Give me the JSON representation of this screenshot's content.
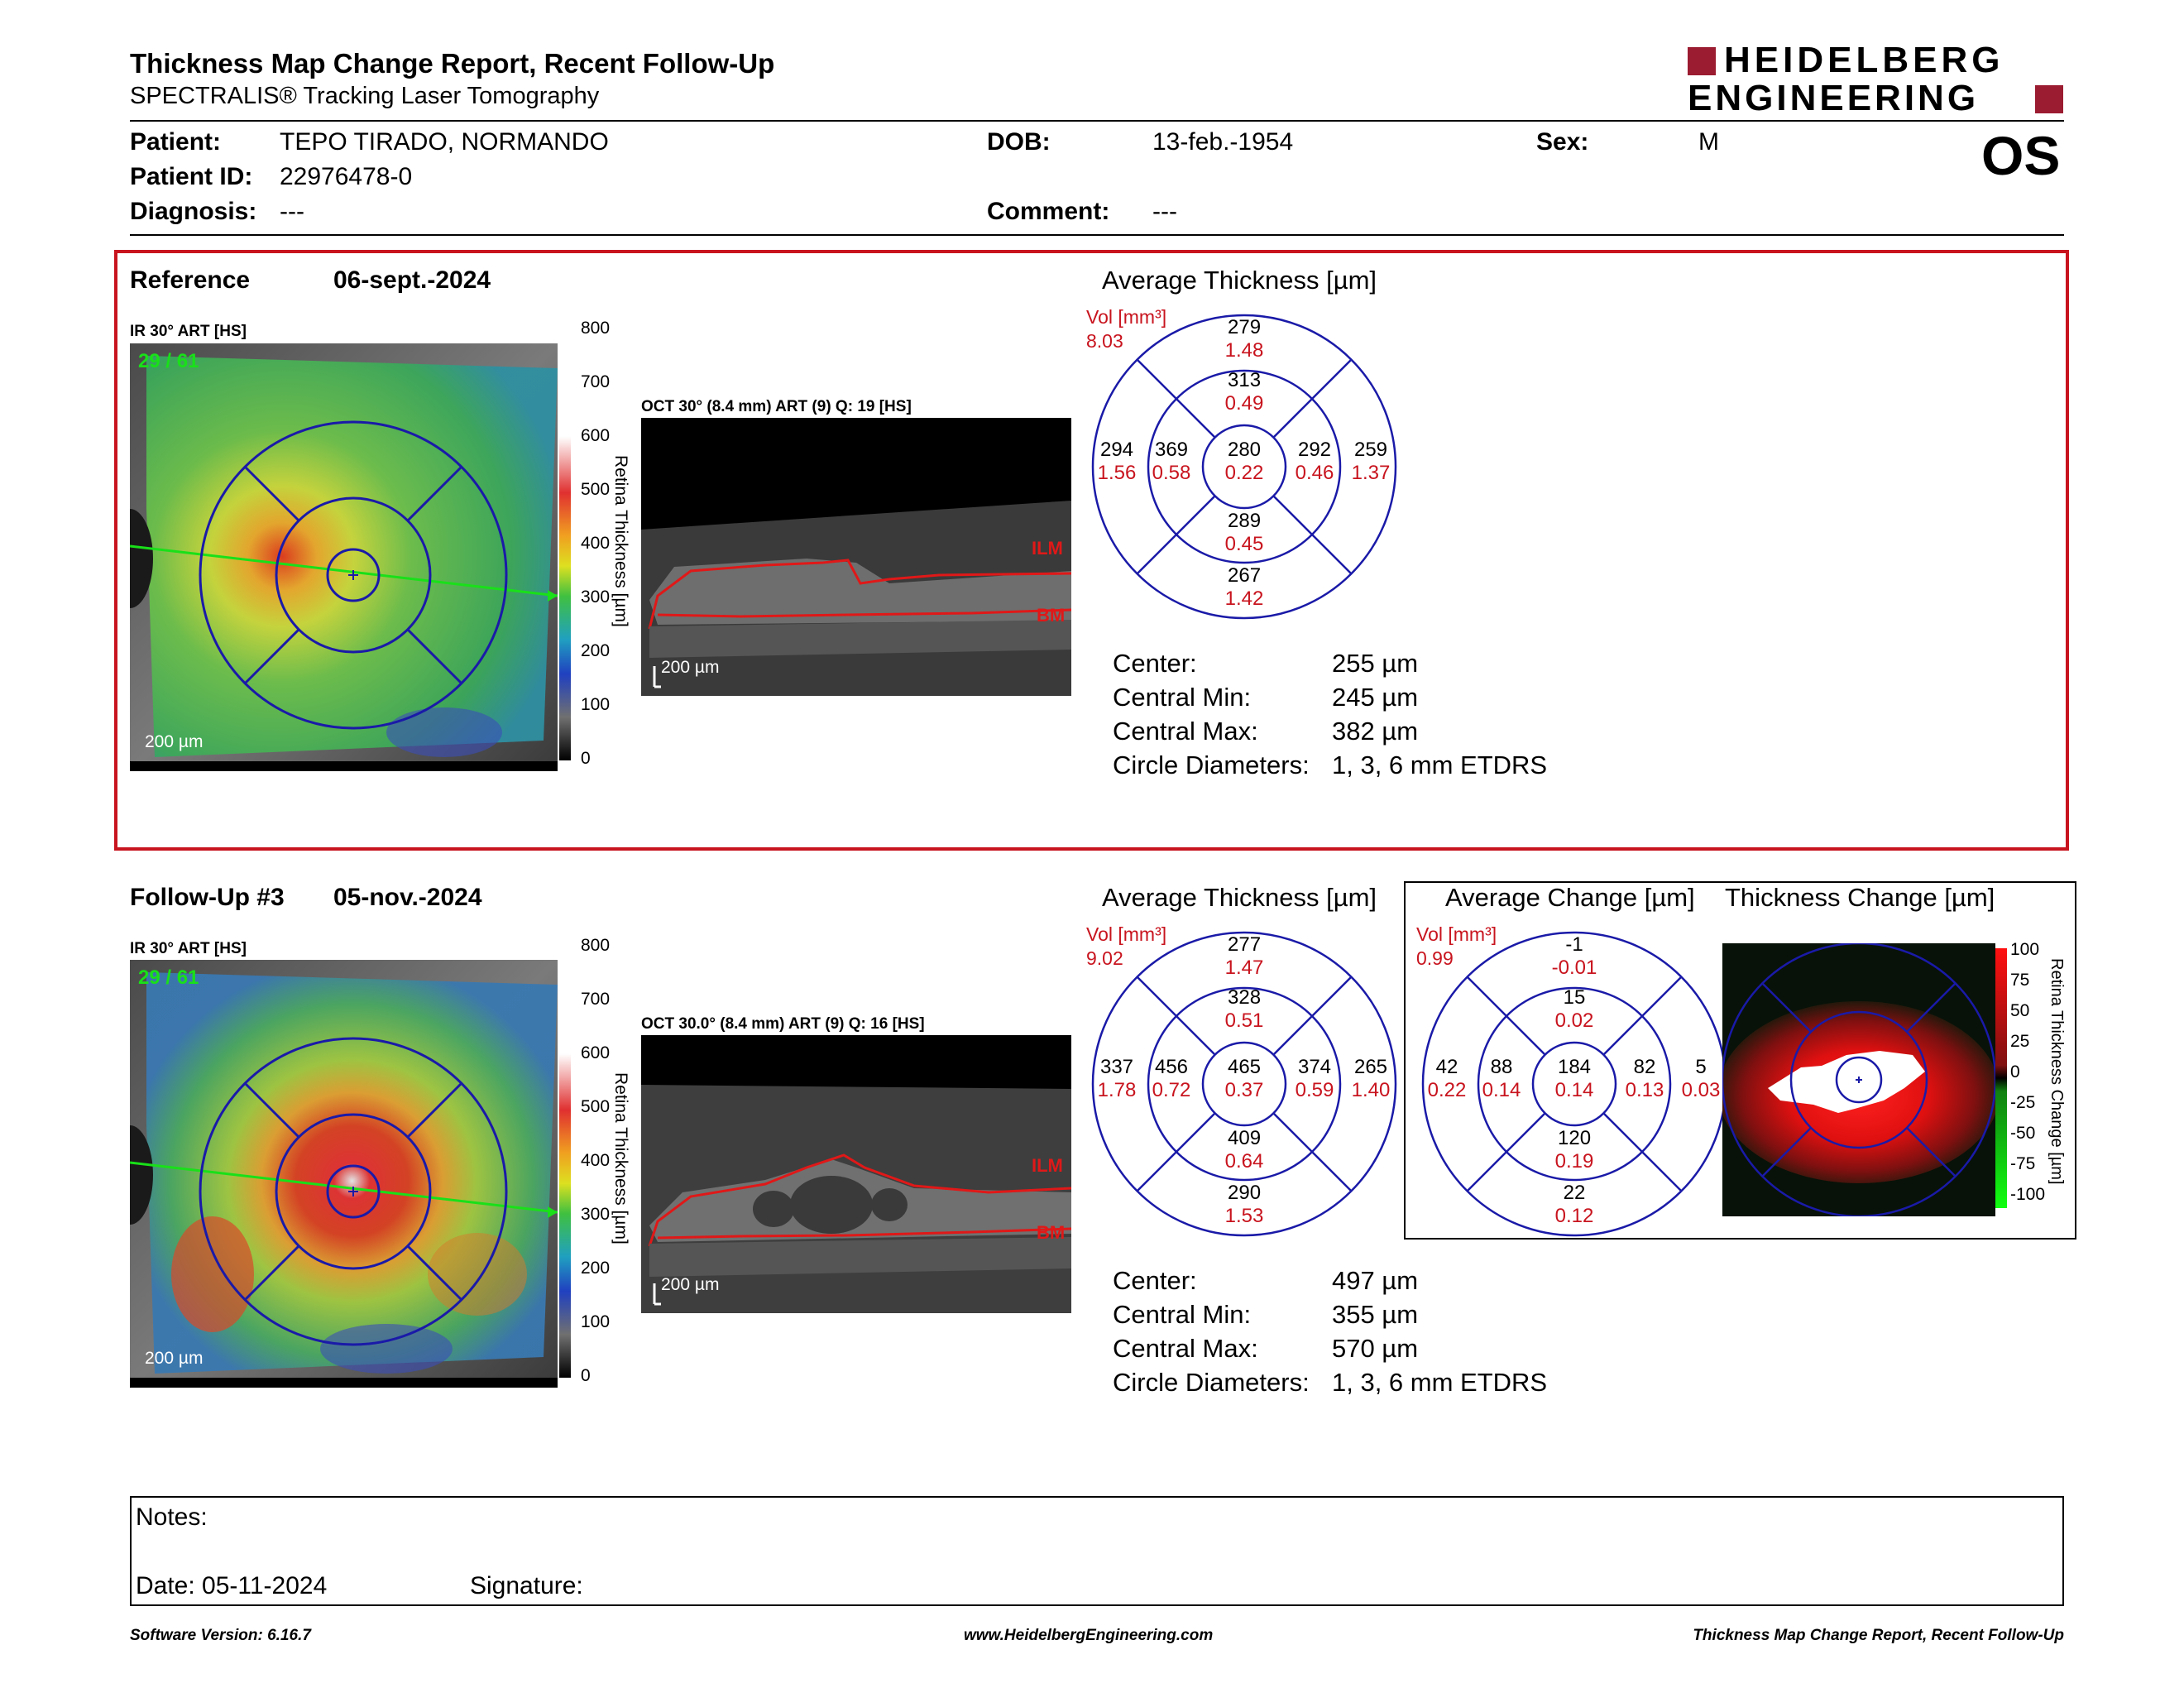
{
  "header": {
    "title": "Thickness Map Change Report, Recent Follow-Up",
    "subtitle": "SPECTRALIS® Tracking Laser Tomography",
    "logo_line1": "HEIDELBERG",
    "logo_line2": "ENGINEERING",
    "eye": "OS"
  },
  "patient": {
    "name_label": "Patient:",
    "name": "TEPO TIRADO, NORMANDO",
    "id_label": "Patient ID:",
    "id": "22976478-0",
    "diagnosis_label": "Diagnosis:",
    "diagnosis": "---",
    "dob_label": "DOB:",
    "dob": "13-feb.-1954",
    "comment_label": "Comment:",
    "comment": "---",
    "sex_label": "Sex:",
    "sex": "M"
  },
  "reference": {
    "label": "Reference",
    "date": "06-sept.-2024",
    "ir_label": "IR 30° ART [HS]",
    "ir_overlay_text": "29 / 61",
    "ir_scalebar": "200 µm",
    "colorbar_ticks": [
      "800",
      "700",
      "600",
      "500",
      "400",
      "300",
      "200",
      "100",
      "0"
    ],
    "colorbar_title": "Retina Thickness [µm]",
    "oct_label": "OCT 30° (8.4 mm) ART (9) Q: 19 [HS]",
    "oct_scalebar": "200 µm",
    "oct_ilm": "ILM",
    "oct_bm": "BM",
    "chart_title": "Average Thickness [µm]",
    "vol_label": "Vol [mm³]",
    "vol_value": "8.03",
    "sectors": {
      "outer_top": {
        "t": "279",
        "v": "1.48"
      },
      "inner_top": {
        "t": "313",
        "v": "0.49"
      },
      "outer_left": {
        "t": "294",
        "v": "1.56"
      },
      "inner_left": {
        "t": "369",
        "v": "0.58"
      },
      "center": {
        "t": "280",
        "v": "0.22"
      },
      "inner_right": {
        "t": "292",
        "v": "0.46"
      },
      "outer_right": {
        "t": "259",
        "v": "1.37"
      },
      "inner_bottom": {
        "t": "289",
        "v": "0.45"
      },
      "outer_bottom": {
        "t": "267",
        "v": "1.42"
      }
    },
    "stats": {
      "center_label": "Center:",
      "center": "255 µm",
      "min_label": "Central Min:",
      "min": "245 µm",
      "max_label": "Central Max:",
      "max": "382 µm",
      "diam_label": "Circle Diameters:",
      "diam": "1, 3, 6 mm ETDRS"
    }
  },
  "followup": {
    "label": "Follow-Up #3",
    "date": "05-nov.-2024",
    "ir_label": "IR 30° ART [HS]",
    "ir_overlay_text": "29 / 61",
    "ir_scalebar": "200 µm",
    "colorbar_ticks": [
      "800",
      "700",
      "600",
      "500",
      "400",
      "300",
      "200",
      "100",
      "0"
    ],
    "colorbar_title": "Retina Thickness [µm]",
    "oct_label": "OCT 30.0° (8.4 mm) ART (9) Q: 16 [HS]",
    "oct_scalebar": "200 µm",
    "oct_ilm": "ILM",
    "oct_bm": "BM",
    "chart_title": "Average Thickness [µm]",
    "vol_label": "Vol [mm³]",
    "vol_value": "9.02",
    "sectors": {
      "outer_top": {
        "t": "277",
        "v": "1.47"
      },
      "inner_top": {
        "t": "328",
        "v": "0.51"
      },
      "outer_left": {
        "t": "337",
        "v": "1.78"
      },
      "inner_left": {
        "t": "456",
        "v": "0.72"
      },
      "center": {
        "t": "465",
        "v": "0.37"
      },
      "inner_right": {
        "t": "374",
        "v": "0.59"
      },
      "outer_right": {
        "t": "265",
        "v": "1.40"
      },
      "inner_bottom": {
        "t": "409",
        "v": "0.64"
      },
      "outer_bottom": {
        "t": "290",
        "v": "1.53"
      }
    },
    "stats": {
      "center_label": "Center:",
      "center": "497 µm",
      "min_label": "Central Min:",
      "min": "355 µm",
      "max_label": "Central Max:",
      "max": "570 µm",
      "diam_label": "Circle Diameters:",
      "diam": "1, 3, 6 mm ETDRS"
    }
  },
  "change": {
    "chart_title": "Average Change [µm]",
    "vol_label": "Vol [mm³]",
    "vol_value": "0.99",
    "sectors": {
      "outer_top": {
        "t": "-1",
        "v": "-0.01"
      },
      "inner_top": {
        "t": "15",
        "v": "0.02"
      },
      "outer_left": {
        "t": "42",
        "v": "0.22"
      },
      "inner_left": {
        "t": "88",
        "v": "0.14"
      },
      "center": {
        "t": "184",
        "v": "0.14"
      },
      "inner_right": {
        "t": "82",
        "v": "0.13"
      },
      "outer_right": {
        "t": "5",
        "v": "0.03"
      },
      "inner_bottom": {
        "t": "120",
        "v": "0.19"
      },
      "outer_bottom": {
        "t": "22",
        "v": "0.12"
      }
    },
    "map_title": "Thickness Change [µm]",
    "map_ticks": [
      "100",
      "75",
      "50",
      "25",
      "0",
      "-25",
      "-50",
      "-75",
      "-100"
    ],
    "map_axis_title": "Retina Thickness Change [µm]"
  },
  "notes": {
    "notes_label": "Notes:",
    "date_label": "Date: 05-11-2024",
    "signature_label": "Signature:"
  },
  "footer": {
    "left": "Software Version: 6.16.7",
    "center": "www.HeidelbergEngineering.com",
    "right": "Thickness Map Change Report, Recent Follow-Up"
  },
  "colors": {
    "accent_red": "#c8141e",
    "etdrs_blue": "#1a1aa8",
    "logo_red": "#9b1b30"
  }
}
